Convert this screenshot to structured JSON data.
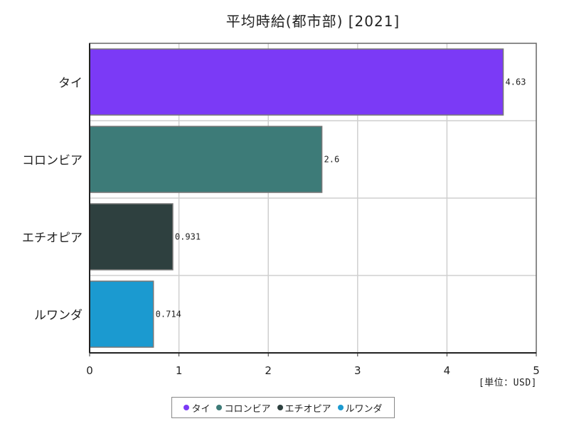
{
  "chart_data": {
    "type": "bar",
    "orientation": "horizontal",
    "title": "平均時給(都市部) [2021]",
    "unit_label": "[単位：USD]",
    "categories": [
      "タイ",
      "コロンビア",
      "エチオピア",
      "ルワンダ"
    ],
    "values": [
      4.63,
      2.6,
      0.931,
      0.714
    ],
    "value_labels": [
      "4.63",
      "2.6",
      "0.931",
      "0.714"
    ],
    "colors": [
      "#7b3af6",
      "#3d7b78",
      "#2e403f",
      "#1b9ad0"
    ],
    "xlim": [
      0,
      5
    ],
    "x_ticks": [
      "0",
      "1",
      "2",
      "3",
      "4",
      "5"
    ],
    "grid": true,
    "legend_position": "bottom"
  }
}
